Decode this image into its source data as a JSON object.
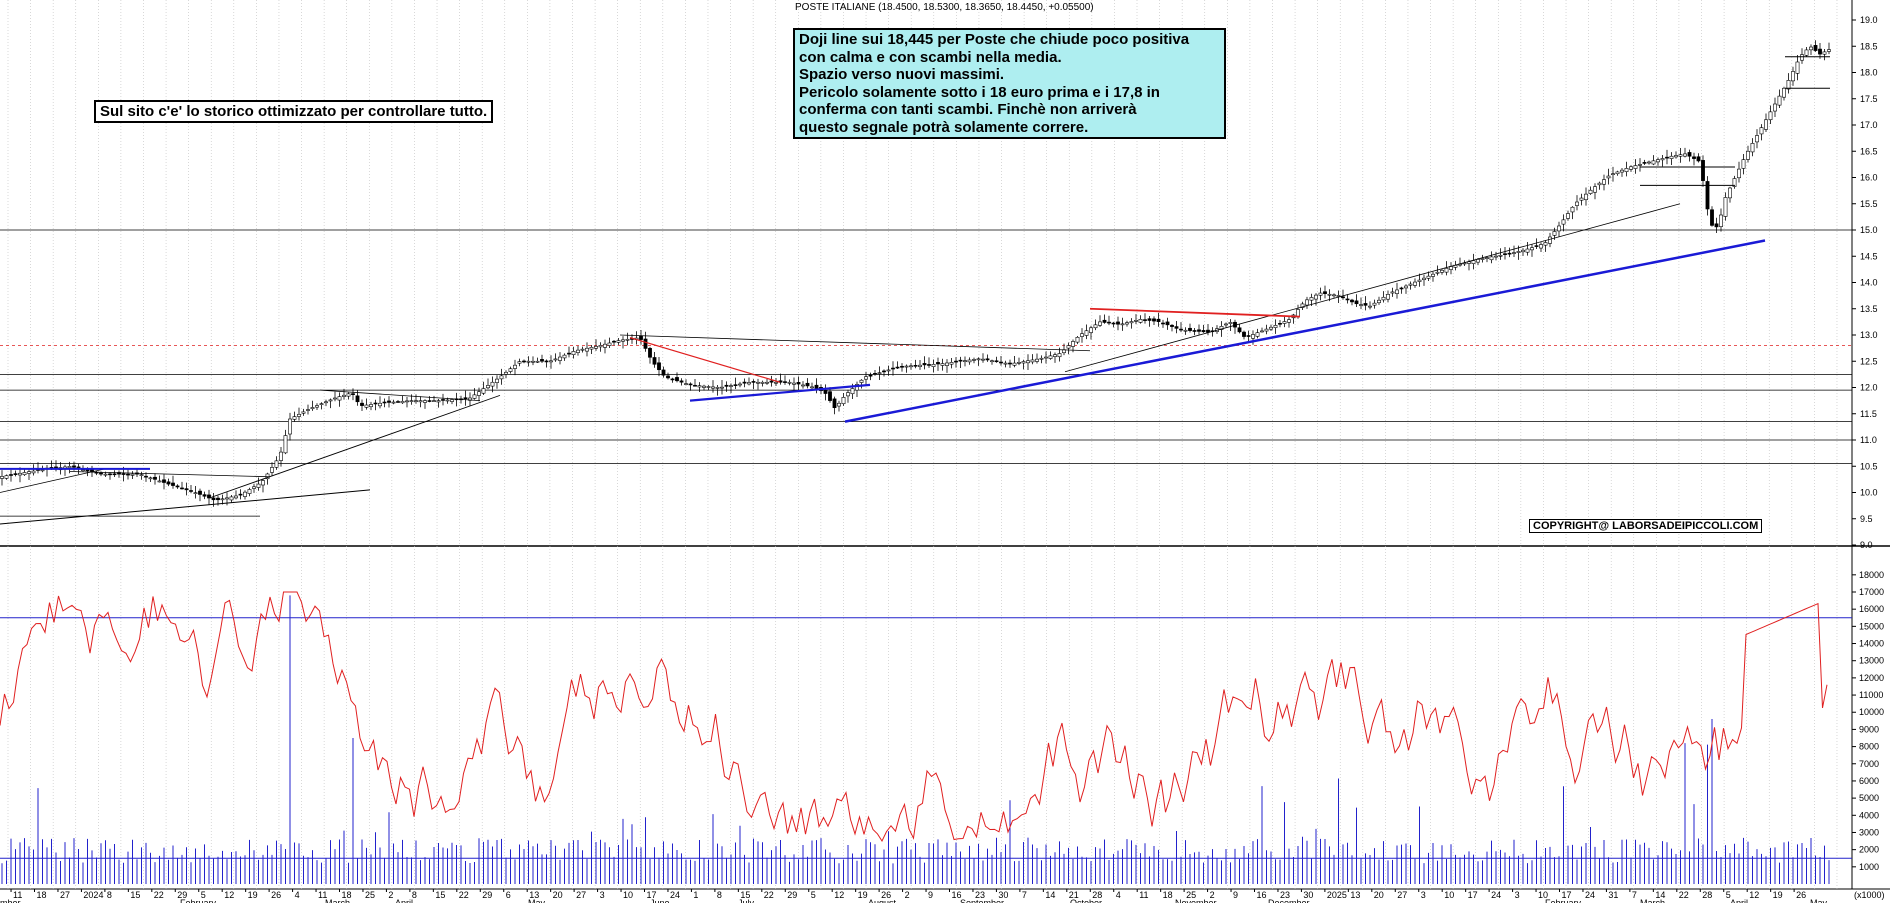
{
  "header": "POSTE ITALIANE (18.4500, 18.5300, 18.3650, 18.4450, +0.05500)",
  "note_left": "Sul sito c'e' lo storico ottimizzato per controllare tutto.",
  "note_right": [
    "Doji line sui 18,445 per Poste che chiude poco positiva",
    "con calma e con scambi nella media.",
    "Spazio verso nuovi massimi.",
    "Pericolo solamente sotto i 18 euro prima e i 17,8 in",
    "conferma con tanti scambi. Finchè non arriverà",
    "questo segnale potrà solamente correre."
  ],
  "copyright": "COPYRIGHT@ LABORSADEIPICCOLI.COM",
  "volume_unit_label": "(x1000)",
  "colors": {
    "candle": "#000000",
    "trendline_blue": "#1a1ad6",
    "trendline_red": "#e02020",
    "volume_bar": "#2222cc",
    "oscillator": "#e02020",
    "note_bg": "#aeeef0"
  },
  "chart_data": [
    {
      "type": "candlestick",
      "title": "POSTE ITALIANE (18.4500, 18.5300, 18.3650, 18.4450, +0.05500)",
      "ylim": [
        9.0,
        19.0
      ],
      "yticks": [
        9.0,
        9.5,
        10.0,
        10.5,
        11.0,
        11.5,
        12.0,
        12.5,
        13.0,
        13.5,
        14.0,
        14.5,
        15.0,
        15.5,
        16.0,
        16.5,
        17.0,
        17.5,
        18.0,
        18.5,
        19.0
      ],
      "horizontal_levels": [
        10.55,
        11.0,
        11.35,
        11.95,
        12.25,
        15.0
      ],
      "dashed_level": 12.8,
      "last_candle": {
        "open": 18.45,
        "high": 18.53,
        "low": 18.365,
        "close": 18.445,
        "change": 0.055
      },
      "approx_closes_by_month": [
        {
          "month": "December 2023",
          "close": 10.4
        },
        {
          "month": "January 2024",
          "close": 10.2
        },
        {
          "month": "February 2024",
          "close": 10.0
        },
        {
          "month": "March 2024",
          "close": 11.8
        },
        {
          "month": "April 2024",
          "close": 11.8
        },
        {
          "month": "May 2024",
          "close": 12.6
        },
        {
          "month": "June 2024",
          "close": 12.2
        },
        {
          "month": "July 2024",
          "close": 12.1
        },
        {
          "month": "August 2024",
          "close": 12.0
        },
        {
          "month": "September 2024",
          "close": 12.5
        },
        {
          "month": "October 2024",
          "close": 13.3
        },
        {
          "month": "November 2024",
          "close": 13.2
        },
        {
          "month": "December 2024",
          "close": 13.8
        },
        {
          "month": "January 2025",
          "close": 14.6
        },
        {
          "month": "February 2025",
          "close": 15.4
        },
        {
          "month": "March 2025",
          "close": 16.6
        },
        {
          "month": "April 2025",
          "close": 17.2
        },
        {
          "month": "May 2025",
          "close": 18.445
        }
      ]
    },
    {
      "type": "bar+line",
      "title": "",
      "ylabel": "(x1000)",
      "ylim": [
        0,
        18000
      ],
      "yticks": [
        1000,
        2000,
        3000,
        4000,
        5000,
        6000,
        7000,
        8000,
        9000,
        10000,
        11000,
        12000,
        13000,
        14000,
        15000,
        16000,
        17000,
        18000
      ],
      "horizontal_levels": [
        1500,
        15500
      ],
      "series": [
        {
          "type": "bar",
          "values_note": "daily volume, typically 1500–3000, spikes up to ~17000 in March 2024"
        },
        {
          "type": "line",
          "values_note": "oscillator ranging ~2500–17000"
        }
      ]
    }
  ],
  "x_axis": {
    "day_labels": [
      "11",
      "18",
      "27",
      "2024",
      "8",
      "15",
      "22",
      "29",
      "5",
      "12",
      "19",
      "26",
      "4",
      "11",
      "18",
      "25",
      "2",
      "8",
      "15",
      "22",
      "29",
      "6",
      "13",
      "20",
      "27",
      "3",
      "10",
      "17",
      "24",
      "1",
      "8",
      "15",
      "22",
      "29",
      "5",
      "12",
      "19",
      "26",
      "2",
      "9",
      "16",
      "23",
      "30",
      "7",
      "14",
      "21",
      "28",
      "4",
      "11",
      "18",
      "25",
      "2",
      "9",
      "16",
      "23",
      "30",
      "2025",
      "13",
      "20",
      "27",
      "3",
      "10",
      "17",
      "24",
      "3",
      "10",
      "17",
      "24",
      "31",
      "7",
      "14",
      "22",
      "28",
      "5",
      "12",
      "19",
      "26"
    ],
    "month_labels": [
      "mber",
      "February",
      "March",
      "April",
      "May",
      "June",
      "July",
      "August",
      "September",
      "October",
      "November",
      "December",
      "February",
      "March",
      "April",
      "May"
    ]
  }
}
